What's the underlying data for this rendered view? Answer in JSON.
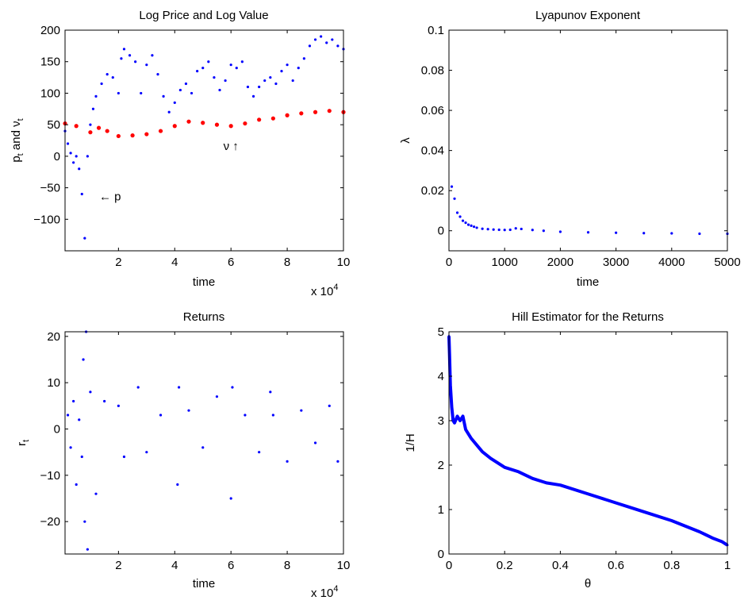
{
  "chart_data": [
    {
      "type": "scatter",
      "title": "Log Price and Log Value",
      "xlabel": "time",
      "ylabel": "p_t and ν_t",
      "x_exponent_label": "x 10",
      "x_exponent_power": "4",
      "xlim": [
        0.1,
        10
      ],
      "ylim": [
        -150,
        200
      ],
      "xticks": [
        2,
        4,
        6,
        8,
        10
      ],
      "yticks": [
        -100,
        -50,
        0,
        50,
        100,
        150,
        200
      ],
      "ytick_labels": [
        "−100",
        "−50",
        "0",
        "50",
        "100",
        "150",
        "200"
      ],
      "annotations": [
        {
          "text": "← p",
          "x": 1.7,
          "y": -70
        },
        {
          "text": "ν ↑",
          "x": 6.0,
          "y": 10
        }
      ],
      "series": [
        {
          "name": "p",
          "color": "#0000ff",
          "x": [
            0.1,
            0.2,
            0.3,
            0.4,
            0.5,
            0.6,
            0.7,
            0.8,
            0.9,
            1.0,
            1.1,
            1.2,
            1.4,
            1.6,
            1.8,
            2.0,
            2.1,
            2.2,
            2.4,
            2.6,
            2.8,
            3.0,
            3.2,
            3.4,
            3.6,
            3.8,
            4.0,
            4.2,
            4.4,
            4.6,
            4.8,
            5.0,
            5.2,
            5.4,
            5.6,
            5.8,
            6.0,
            6.2,
            6.4,
            6.6,
            6.8,
            7.0,
            7.2,
            7.4,
            7.6,
            7.8,
            8.0,
            8.2,
            8.4,
            8.6,
            8.8,
            9.0,
            9.2,
            9.4,
            9.6,
            9.8,
            10.0
          ],
          "y": [
            40,
            20,
            5,
            -10,
            0,
            -20,
            -60,
            -130,
            0,
            50,
            75,
            95,
            115,
            130,
            125,
            100,
            155,
            170,
            160,
            150,
            100,
            145,
            160,
            130,
            95,
            70,
            85,
            105,
            115,
            100,
            135,
            140,
            150,
            125,
            105,
            120,
            145,
            140,
            150,
            110,
            95,
            110,
            120,
            125,
            115,
            135,
            145,
            120,
            140,
            155,
            175,
            185,
            190,
            180,
            185,
            175,
            170
          ]
        },
        {
          "name": "ν",
          "color": "#ff0000",
          "x": [
            0.1,
            0.5,
            1.0,
            1.3,
            1.6,
            2.0,
            2.5,
            3.0,
            3.5,
            4.0,
            4.5,
            5.0,
            5.5,
            6.0,
            6.5,
            7.0,
            7.5,
            8.0,
            8.5,
            9.0,
            9.5,
            10.0
          ],
          "y": [
            52,
            48,
            38,
            45,
            40,
            32,
            33,
            35,
            40,
            48,
            55,
            53,
            50,
            48,
            52,
            58,
            60,
            65,
            68,
            70,
            72,
            70
          ]
        }
      ]
    },
    {
      "type": "scatter",
      "title": "Lyapunov Exponent",
      "xlabel": "time",
      "ylabel": "λ",
      "xlim": [
        0,
        5000
      ],
      "ylim": [
        -0.01,
        0.1
      ],
      "xticks": [
        0,
        1000,
        2000,
        3000,
        4000,
        5000
      ],
      "yticks": [
        0,
        0.02,
        0.04,
        0.06,
        0.08,
        0.1
      ],
      "ytick_labels": [
        "0",
        "0.02",
        "0.04",
        "0.06",
        "0.08",
        "0.1"
      ],
      "series": [
        {
          "color": "#0000ff",
          "x": [
            50,
            100,
            150,
            200,
            250,
            300,
            350,
            400,
            450,
            500,
            600,
            700,
            800,
            900,
            1000,
            1100,
            1200,
            1300,
            1500,
            1700,
            2000,
            2500,
            3000,
            3500,
            4000,
            4500,
            5000
          ],
          "y": [
            0.022,
            0.016,
            0.009,
            0.007,
            0.005,
            0.004,
            0.003,
            0.0025,
            0.002,
            0.0015,
            0.001,
            0.0008,
            0.0006,
            0.0005,
            0.0004,
            0.0005,
            0.0012,
            0.0009,
            0.0004,
            0.0,
            -0.0005,
            -0.0008,
            -0.001,
            -0.0012,
            -0.0013,
            -0.0015,
            -0.0015
          ]
        }
      ]
    },
    {
      "type": "scatter",
      "title": "Returns",
      "xlabel": "time",
      "ylabel": "r_t",
      "x_exponent_label": "x 10",
      "x_exponent_power": "4",
      "xlim": [
        0.1,
        10
      ],
      "ylim": [
        -27,
        21
      ],
      "xticks": [
        2,
        4,
        6,
        8,
        10
      ],
      "yticks": [
        -20,
        -10,
        0,
        10,
        20
      ],
      "ytick_labels": [
        "−20",
        "−10",
        "0",
        "10",
        "20"
      ],
      "series": [
        {
          "color": "#0000ff",
          "x": [
            0.2,
            0.3,
            0.4,
            0.5,
            0.6,
            0.7,
            0.75,
            0.8,
            0.85,
            0.9,
            1.0,
            1.2,
            1.5,
            2.0,
            2.2,
            2.7,
            3.0,
            3.5,
            4.1,
            4.15,
            4.5,
            5.0,
            5.5,
            6.0,
            6.05,
            6.5,
            7.0,
            7.4,
            7.5,
            8.0,
            8.5,
            9.0,
            9.5,
            9.8
          ],
          "y": [
            3,
            -4,
            6,
            -12,
            2,
            -6,
            15,
            -20,
            21,
            -26,
            8,
            -14,
            6,
            5,
            -6,
            9,
            -5,
            3,
            -12,
            9,
            4,
            -4,
            7,
            -15,
            9,
            3,
            -5,
            8,
            3,
            -7,
            4,
            -3,
            5,
            -7
          ]
        }
      ]
    },
    {
      "type": "line",
      "title": "Hill Estimator for the Returns",
      "xlabel": "θ",
      "ylabel": "1/H",
      "xlim": [
        0,
        1
      ],
      "ylim": [
        0,
        5
      ],
      "xticks": [
        0,
        0.2,
        0.4,
        0.6,
        0.8,
        1
      ],
      "yticks": [
        0,
        1,
        2,
        3,
        4,
        5
      ],
      "ytick_labels": [
        "0",
        "1",
        "2",
        "3",
        "4",
        "5"
      ],
      "series": [
        {
          "color": "#0000ff",
          "x": [
            0,
            0.002,
            0.005,
            0.01,
            0.015,
            0.02,
            0.03,
            0.04,
            0.05,
            0.06,
            0.08,
            0.1,
            0.12,
            0.15,
            0.2,
            0.25,
            0.3,
            0.35,
            0.4,
            0.5,
            0.6,
            0.7,
            0.8,
            0.9,
            0.95,
            0.98,
            1.0
          ],
          "y": [
            4.9,
            4.5,
            3.8,
            3.3,
            3.0,
            2.95,
            3.1,
            3.0,
            3.1,
            2.8,
            2.6,
            2.45,
            2.3,
            2.15,
            1.95,
            1.85,
            1.7,
            1.6,
            1.55,
            1.35,
            1.15,
            0.95,
            0.75,
            0.5,
            0.35,
            0.28,
            0.2
          ]
        }
      ]
    }
  ]
}
